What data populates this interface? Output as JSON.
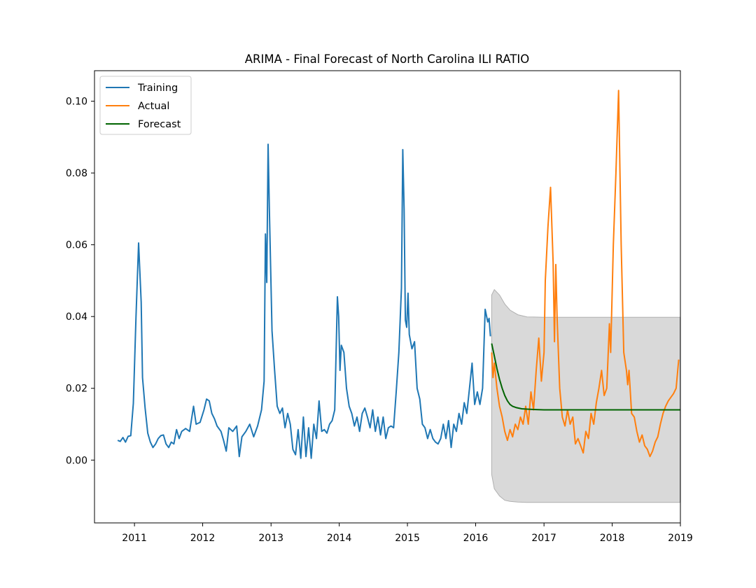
{
  "chart_data": {
    "type": "line",
    "title": "ARIMA - Final Forecast of North Carolina ILI RATIO",
    "xlabel": "",
    "ylabel": "",
    "xlim": [
      "2010-06-01",
      "2019-01-01"
    ],
    "ylim": [
      -0.0175,
      0.1085
    ],
    "x_ticks": [
      "2011",
      "2012",
      "2013",
      "2014",
      "2015",
      "2016",
      "2017",
      "2018",
      "2019"
    ],
    "y_ticks": [
      "0.00",
      "0.02",
      "0.04",
      "0.06",
      "0.08",
      "0.10"
    ],
    "grid": false,
    "legend_position": "upper-left",
    "confidence_band": {
      "color": "#d9d9d9",
      "points": [
        [
          "2016-03-27",
          0.046,
          -0.004
        ],
        [
          "2016-04-10",
          0.0475,
          -0.008
        ],
        [
          "2016-05-08",
          0.046,
          -0.01
        ],
        [
          "2016-06-05",
          0.0435,
          -0.0112
        ],
        [
          "2016-07-03",
          0.0418,
          -0.0115
        ],
        [
          "2016-08-14",
          0.0405,
          -0.0117
        ],
        [
          "2016-10-02",
          0.0399,
          -0.0118
        ],
        [
          "2017-01-01",
          0.0398,
          -0.0118
        ],
        [
          "2018-12-30",
          0.0398,
          -0.0118
        ]
      ]
    },
    "series": [
      {
        "name": "Training",
        "color": "#1f77b4",
        "points": [
          [
            "2010-10-03",
            0.0055
          ],
          [
            "2010-10-17",
            0.0052
          ],
          [
            "2010-10-31",
            0.0063
          ],
          [
            "2010-11-14",
            0.005
          ],
          [
            "2010-11-28",
            0.0066
          ],
          [
            "2010-12-12",
            0.0068
          ],
          [
            "2010-12-26",
            0.0158
          ],
          [
            "2011-01-09",
            0.04
          ],
          [
            "2011-01-23",
            0.0605
          ],
          [
            "2011-02-06",
            0.044
          ],
          [
            "2011-02-13",
            0.023
          ],
          [
            "2011-02-27",
            0.0145
          ],
          [
            "2011-03-13",
            0.0075
          ],
          [
            "2011-03-27",
            0.005
          ],
          [
            "2011-04-10",
            0.0035
          ],
          [
            "2011-04-24",
            0.0045
          ],
          [
            "2011-05-08",
            0.006
          ],
          [
            "2011-05-22",
            0.0068
          ],
          [
            "2011-06-05",
            0.007
          ],
          [
            "2011-06-19",
            0.0045
          ],
          [
            "2011-07-03",
            0.0035
          ],
          [
            "2011-07-17",
            0.005
          ],
          [
            "2011-07-31",
            0.0045
          ],
          [
            "2011-08-14",
            0.0085
          ],
          [
            "2011-08-28",
            0.006
          ],
          [
            "2011-09-11",
            0.008
          ],
          [
            "2011-10-02",
            0.0088
          ],
          [
            "2011-10-23",
            0.008
          ],
          [
            "2011-11-13",
            0.015
          ],
          [
            "2011-11-27",
            0.01
          ],
          [
            "2011-12-18",
            0.0105
          ],
          [
            "2012-01-08",
            0.014
          ],
          [
            "2012-01-22",
            0.017
          ],
          [
            "2012-02-05",
            0.0165
          ],
          [
            "2012-02-19",
            0.013
          ],
          [
            "2012-03-04",
            0.0115
          ],
          [
            "2012-03-18",
            0.0095
          ],
          [
            "2012-04-08",
            0.008
          ],
          [
            "2012-04-22",
            0.0055
          ],
          [
            "2012-05-06",
            0.0025
          ],
          [
            "2012-05-20",
            0.009
          ],
          [
            "2012-06-10",
            0.008
          ],
          [
            "2012-07-01",
            0.0095
          ],
          [
            "2012-07-15",
            0.001
          ],
          [
            "2012-07-29",
            0.0065
          ],
          [
            "2012-08-19",
            0.008
          ],
          [
            "2012-09-09",
            0.01
          ],
          [
            "2012-09-30",
            0.0065
          ],
          [
            "2012-10-21",
            0.0095
          ],
          [
            "2012-11-11",
            0.014
          ],
          [
            "2012-11-25",
            0.022
          ],
          [
            "2012-12-02",
            0.063
          ],
          [
            "2012-12-09",
            0.0495
          ],
          [
            "2012-12-16",
            0.088
          ],
          [
            "2012-12-23",
            0.07
          ],
          [
            "2013-01-06",
            0.036
          ],
          [
            "2013-01-20",
            0.025
          ],
          [
            "2013-02-03",
            0.015
          ],
          [
            "2013-02-17",
            0.013
          ],
          [
            "2013-03-03",
            0.0145
          ],
          [
            "2013-03-17",
            0.009
          ],
          [
            "2013-03-31",
            0.013
          ],
          [
            "2013-04-14",
            0.01
          ],
          [
            "2013-04-28",
            0.003
          ],
          [
            "2013-05-12",
            0.0015
          ],
          [
            "2013-05-26",
            0.0085
          ],
          [
            "2013-06-09",
            0.0005
          ],
          [
            "2013-06-23",
            0.012
          ],
          [
            "2013-07-07",
            0.001
          ],
          [
            "2013-07-21",
            0.009
          ],
          [
            "2013-08-04",
            0.0005
          ],
          [
            "2013-08-18",
            0.01
          ],
          [
            "2013-09-01",
            0.006
          ],
          [
            "2013-09-15",
            0.0165
          ],
          [
            "2013-09-29",
            0.008
          ],
          [
            "2013-10-13",
            0.0085
          ],
          [
            "2013-10-27",
            0.0075
          ],
          [
            "2013-11-10",
            0.01
          ],
          [
            "2013-11-24",
            0.011
          ],
          [
            "2013-12-08",
            0.014
          ],
          [
            "2013-12-22",
            0.0455
          ],
          [
            "2013-12-29",
            0.04
          ],
          [
            "2014-01-05",
            0.025
          ],
          [
            "2014-01-12",
            0.032
          ],
          [
            "2014-01-26",
            0.03
          ],
          [
            "2014-02-09",
            0.02
          ],
          [
            "2014-02-23",
            0.015
          ],
          [
            "2014-03-09",
            0.013
          ],
          [
            "2014-03-23",
            0.0095
          ],
          [
            "2014-04-06",
            0.012
          ],
          [
            "2014-04-20",
            0.008
          ],
          [
            "2014-05-04",
            0.013
          ],
          [
            "2014-05-18",
            0.0145
          ],
          [
            "2014-06-01",
            0.012
          ],
          [
            "2014-06-15",
            0.009
          ],
          [
            "2014-06-29",
            0.014
          ],
          [
            "2014-07-13",
            0.008
          ],
          [
            "2014-07-27",
            0.012
          ],
          [
            "2014-08-10",
            0.007
          ],
          [
            "2014-08-24",
            0.012
          ],
          [
            "2014-09-07",
            0.006
          ],
          [
            "2014-09-21",
            0.009
          ],
          [
            "2014-10-05",
            0.0095
          ],
          [
            "2014-10-19",
            0.009
          ],
          [
            "2014-11-02",
            0.019
          ],
          [
            "2014-11-16",
            0.03
          ],
          [
            "2014-11-30",
            0.048
          ],
          [
            "2014-12-07",
            0.0865
          ],
          [
            "2014-12-14",
            0.07
          ],
          [
            "2014-12-21",
            0.039
          ],
          [
            "2014-12-28",
            0.037
          ],
          [
            "2015-01-04",
            0.0465
          ],
          [
            "2015-01-11",
            0.035
          ],
          [
            "2015-01-25",
            0.031
          ],
          [
            "2015-02-08",
            0.033
          ],
          [
            "2015-02-22",
            0.02
          ],
          [
            "2015-03-08",
            0.017
          ],
          [
            "2015-03-22",
            0.01
          ],
          [
            "2015-04-05",
            0.009
          ],
          [
            "2015-04-19",
            0.006
          ],
          [
            "2015-05-03",
            0.0085
          ],
          [
            "2015-05-17",
            0.006
          ],
          [
            "2015-05-31",
            0.005
          ],
          [
            "2015-06-14",
            0.0045
          ],
          [
            "2015-06-28",
            0.006
          ],
          [
            "2015-07-12",
            0.01
          ],
          [
            "2015-07-26",
            0.006
          ],
          [
            "2015-08-09",
            0.011
          ],
          [
            "2015-08-23",
            0.0035
          ],
          [
            "2015-09-06",
            0.01
          ],
          [
            "2015-09-20",
            0.008
          ],
          [
            "2015-10-04",
            0.013
          ],
          [
            "2015-10-18",
            0.01
          ],
          [
            "2015-11-01",
            0.016
          ],
          [
            "2015-11-15",
            0.013
          ],
          [
            "2015-11-29",
            0.02
          ],
          [
            "2015-12-13",
            0.027
          ],
          [
            "2015-12-27",
            0.0155
          ],
          [
            "2016-01-10",
            0.019
          ],
          [
            "2016-01-24",
            0.0155
          ],
          [
            "2016-02-07",
            0.02
          ],
          [
            "2016-02-21",
            0.042
          ],
          [
            "2016-03-06",
            0.0385
          ],
          [
            "2016-03-13",
            0.0395
          ],
          [
            "2016-03-20",
            0.0345
          ]
        ]
      },
      {
        "name": "Actual",
        "color": "#ff7f0e",
        "points": [
          [
            "2016-03-27",
            0.03
          ],
          [
            "2016-04-03",
            0.023
          ],
          [
            "2016-04-10",
            0.027
          ],
          [
            "2016-04-24",
            0.02
          ],
          [
            "2016-05-08",
            0.015
          ],
          [
            "2016-05-22",
            0.012
          ],
          [
            "2016-06-05",
            0.008
          ],
          [
            "2016-06-19",
            0.0055
          ],
          [
            "2016-07-03",
            0.0085
          ],
          [
            "2016-07-17",
            0.0065
          ],
          [
            "2016-07-31",
            0.01
          ],
          [
            "2016-08-14",
            0.0085
          ],
          [
            "2016-08-28",
            0.012
          ],
          [
            "2016-09-11",
            0.01
          ],
          [
            "2016-09-25",
            0.015
          ],
          [
            "2016-10-09",
            0.01
          ],
          [
            "2016-10-23",
            0.019
          ],
          [
            "2016-11-06",
            0.014
          ],
          [
            "2016-11-20",
            0.025
          ],
          [
            "2016-12-04",
            0.034
          ],
          [
            "2016-12-18",
            0.022
          ],
          [
            "2017-01-01",
            0.03
          ],
          [
            "2017-01-08",
            0.05
          ],
          [
            "2017-01-22",
            0.065
          ],
          [
            "2017-02-05",
            0.076
          ],
          [
            "2017-02-19",
            0.055
          ],
          [
            "2017-02-26",
            0.033
          ],
          [
            "2017-03-05",
            0.0545
          ],
          [
            "2017-03-12",
            0.04
          ],
          [
            "2017-03-26",
            0.02
          ],
          [
            "2017-04-09",
            0.012
          ],
          [
            "2017-04-23",
            0.0095
          ],
          [
            "2017-05-07",
            0.014
          ],
          [
            "2017-05-21",
            0.01
          ],
          [
            "2017-06-04",
            0.012
          ],
          [
            "2017-06-18",
            0.0045
          ],
          [
            "2017-07-02",
            0.006
          ],
          [
            "2017-07-16",
            0.004
          ],
          [
            "2017-07-30",
            0.002
          ],
          [
            "2017-08-13",
            0.008
          ],
          [
            "2017-08-27",
            0.006
          ],
          [
            "2017-09-10",
            0.013
          ],
          [
            "2017-09-24",
            0.01
          ],
          [
            "2017-10-08",
            0.016
          ],
          [
            "2017-10-22",
            0.02
          ],
          [
            "2017-11-05",
            0.025
          ],
          [
            "2017-11-19",
            0.018
          ],
          [
            "2017-12-03",
            0.02
          ],
          [
            "2017-12-17",
            0.038
          ],
          [
            "2017-12-24",
            0.03
          ],
          [
            "2018-01-07",
            0.06
          ],
          [
            "2018-01-21",
            0.08
          ],
          [
            "2018-02-04",
            0.103
          ],
          [
            "2018-02-18",
            0.06
          ],
          [
            "2018-03-04",
            0.03
          ],
          [
            "2018-03-18",
            0.025
          ],
          [
            "2018-03-25",
            0.021
          ],
          [
            "2018-04-01",
            0.025
          ],
          [
            "2018-04-15",
            0.013
          ],
          [
            "2018-04-29",
            0.012
          ],
          [
            "2018-05-13",
            0.008
          ],
          [
            "2018-05-27",
            0.005
          ],
          [
            "2018-06-10",
            0.007
          ],
          [
            "2018-06-24",
            0.004
          ],
          [
            "2018-07-08",
            0.003
          ],
          [
            "2018-07-22",
            0.001
          ],
          [
            "2018-08-05",
            0.0025
          ],
          [
            "2018-08-19",
            0.005
          ],
          [
            "2018-09-02",
            0.0065
          ],
          [
            "2018-09-16",
            0.01
          ],
          [
            "2018-09-30",
            0.013
          ],
          [
            "2018-10-14",
            0.015
          ],
          [
            "2018-10-28",
            0.0165
          ],
          [
            "2018-11-11",
            0.0175
          ],
          [
            "2018-11-25",
            0.0185
          ],
          [
            "2018-12-09",
            0.02
          ],
          [
            "2018-12-23",
            0.028
          ]
        ]
      },
      {
        "name": "Forecast",
        "color": "#006400",
        "points": [
          [
            "2016-03-27",
            0.0325
          ],
          [
            "2016-04-10",
            0.029
          ],
          [
            "2016-04-24",
            0.0255
          ],
          [
            "2016-05-08",
            0.0225
          ],
          [
            "2016-05-22",
            0.02
          ],
          [
            "2016-06-05",
            0.018
          ],
          [
            "2016-06-19",
            0.0165
          ],
          [
            "2016-07-03",
            0.0155
          ],
          [
            "2016-07-17",
            0.015
          ],
          [
            "2016-08-07",
            0.0146
          ],
          [
            "2016-09-04",
            0.0143
          ],
          [
            "2016-10-02",
            0.0142
          ],
          [
            "2016-11-06",
            0.0141
          ],
          [
            "2017-01-01",
            0.014
          ],
          [
            "2018-12-30",
            0.014
          ]
        ]
      }
    ]
  }
}
